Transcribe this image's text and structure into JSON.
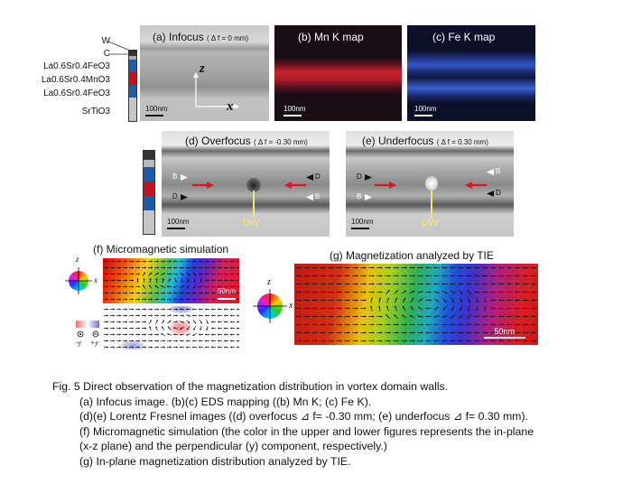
{
  "layers": [
    "W",
    "C",
    "La0.6Sr0.4FeO3",
    "La0.6Sr0.4MnO3",
    "La0.6Sr0.4FeO3",
    "SrTiO3"
  ],
  "panels": {
    "a": {
      "label": "(a) Infocus",
      "cond": "( Δ f = 0 mm)",
      "scale": "100nm",
      "axis_z": "z",
      "axis_x": "x"
    },
    "b": {
      "label": "(b) Mn K map",
      "scale": "100nm"
    },
    "c": {
      "label": "(c) Fe K map",
      "scale": "100nm"
    },
    "d": {
      "label": "(d) Overfocus",
      "cond": "( Δ f = -0.30 mm)",
      "scale": "100nm",
      "dw": "DW",
      "mark_b": "B",
      "mark_d": "D"
    },
    "e": {
      "label": "(e) Underfocus",
      "cond": "( Δ f = 0.30 mm)",
      "scale": "100nm",
      "dw": "DW",
      "mark_b": "B",
      "mark_d": "D"
    },
    "f": {
      "label": "(f) Micromagnetic simulation",
      "scale": "50nm",
      "axis_z": "z",
      "axis_x": "x",
      "legend_neg": "-y",
      "legend_pos": "+y"
    },
    "g": {
      "label": "(g) Magnetization analyzed by TIE",
      "scale": "50nm",
      "axis_z": "z",
      "axis_x": "x"
    }
  },
  "caption": {
    "title": "Fig. 5  Direct observation of the magnetization distribution in vortex domain walls.",
    "lines": [
      "(a) Infocus image. (b)(c) EDS mapping ((b) Mn K; (c) Fe K).",
      "(d)(e) Lorentz Fresnel images ((d) overfocus ⊿ f= -0.30 mm; (e) underfocus ⊿ f= 0.30 mm).",
      "(f) Micromagnetic simulation (the color in the upper and lower figures represents the in-plane",
      "(x-z plane) and the perpendicular (y) component, respectively.)",
      "(g) In-plane magnetization distribution analyzed by TIE."
    ]
  }
}
